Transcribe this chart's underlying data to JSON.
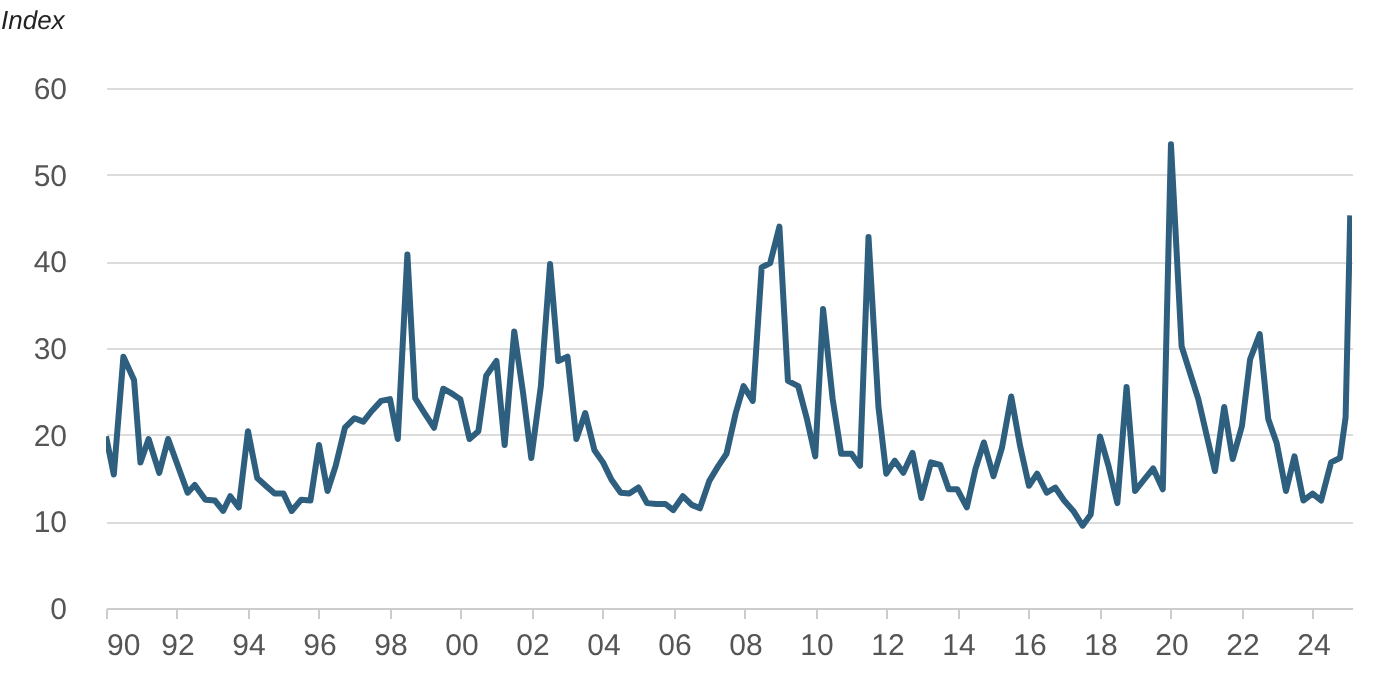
{
  "chart_data": {
    "type": "line",
    "ylabel": "Index",
    "x": [
      1990.0,
      1990.22,
      1990.49,
      1990.79,
      1990.97,
      1991.2,
      1991.5,
      1991.75,
      1992.3,
      1992.5,
      1992.8,
      1993.07,
      1993.3,
      1993.5,
      1993.74,
      1994.0,
      1994.26,
      1994.5,
      1994.75,
      1995.0,
      1995.23,
      1995.5,
      1995.76,
      1996.0,
      1996.24,
      1996.47,
      1996.73,
      1997.0,
      1997.25,
      1997.48,
      1997.75,
      1998.0,
      1998.22,
      1998.49,
      1998.71,
      1998.97,
      1999.24,
      1999.5,
      1999.76,
      1999.98,
      2000.24,
      2000.49,
      2000.71,
      2001.0,
      2001.23,
      2001.5,
      2001.75,
      2001.98,
      2002.25,
      2002.51,
      2002.74,
      2003.0,
      2003.25,
      2003.5,
      2003.76,
      2004.0,
      2004.24,
      2004.5,
      2004.74,
      2005.0,
      2005.24,
      2005.5,
      2005.76,
      2005.98,
      2006.25,
      2006.5,
      2006.73,
      2007.0,
      2007.25,
      2007.48,
      2007.74,
      2007.96,
      2008.22,
      2008.47,
      2008.71,
      2008.97,
      2009.21,
      2009.5,
      2009.74,
      2009.98,
      2010.2,
      2010.47,
      2010.71,
      2011.0,
      2011.24,
      2011.48,
      2011.76,
      2011.98,
      2012.22,
      2012.46,
      2012.72,
      2012.97,
      2013.24,
      2013.5,
      2013.74,
      2013.98,
      2014.25,
      2014.49,
      2014.73,
      2015.0,
      2015.24,
      2015.5,
      2015.75,
      2016.0,
      2016.23,
      2016.5,
      2016.74,
      2016.99,
      2017.25,
      2017.51,
      2017.74,
      2018.0,
      2018.24,
      2018.49,
      2018.75,
      2018.99,
      2019.24,
      2019.5,
      2019.77,
      2020.0,
      2020.3,
      2020.77,
      2021.24,
      2021.5,
      2021.74,
      2022.0,
      2022.23,
      2022.5,
      2022.74,
      2022.98,
      2023.24,
      2023.48,
      2023.73,
      2023.99,
      2024.23,
      2024.51,
      2024.76,
      2024.92,
      2025.05
    ],
    "series": [
      {
        "color": "#2e5f7f",
        "values": [
          19.8,
          15.4,
          29.0,
          26.3,
          16.8,
          19.5,
          15.6,
          19.5,
          13.3,
          14.2,
          12.5,
          12.4,
          11.2,
          12.9,
          11.6,
          20.4,
          15.0,
          14.1,
          13.2,
          13.2,
          11.2,
          12.5,
          12.4,
          18.8,
          13.5,
          16.4,
          20.8,
          21.9,
          21.5,
          22.7,
          23.9,
          24.1,
          19.5,
          40.8,
          24.2,
          22.5,
          20.8,
          25.3,
          24.7,
          24.1,
          19.5,
          20.4,
          26.8,
          28.5,
          18.8,
          31.9,
          24.8,
          17.3,
          25.6,
          39.7,
          28.5,
          29.0,
          19.5,
          22.5,
          18.2,
          16.8,
          14.8,
          13.3,
          13.2,
          13.9,
          12.1,
          12.0,
          12.0,
          11.3,
          12.9,
          11.9,
          11.5,
          14.7,
          16.4,
          17.8,
          22.5,
          25.6,
          23.9,
          39.3,
          39.8,
          44.0,
          26.2,
          25.6,
          21.9,
          17.5,
          34.5,
          24.1,
          17.8,
          17.8,
          16.4,
          42.8,
          23.2,
          15.5,
          17.0,
          15.6,
          17.9,
          12.7,
          16.8,
          16.5,
          13.7,
          13.7,
          11.6,
          16.0,
          19.1,
          15.2,
          18.5,
          24.4,
          18.7,
          14.1,
          15.5,
          13.3,
          13.9,
          12.4,
          11.2,
          9.5,
          10.8,
          19.8,
          16.4,
          12.1,
          25.5,
          13.5,
          14.8,
          16.1,
          13.7,
          53.5,
          30.2,
          24.1,
          15.8,
          23.2,
          17.2,
          21.0,
          28.7,
          31.6,
          21.8,
          19.0,
          13.5,
          17.5,
          12.4,
          13.2,
          12.4,
          16.8,
          17.3,
          22.0,
          45.3
        ]
      }
    ],
    "xlim": [
      1990,
      2025.1
    ],
    "xticks": [
      {
        "value": 1990,
        "label": "90"
      },
      {
        "value": 1992,
        "label": "92"
      },
      {
        "value": 1994,
        "label": "94"
      },
      {
        "value": 1996,
        "label": "96"
      },
      {
        "value": 1998,
        "label": "98"
      },
      {
        "value": 2000,
        "label": "00"
      },
      {
        "value": 2002,
        "label": "02"
      },
      {
        "value": 2004,
        "label": "04"
      },
      {
        "value": 2006,
        "label": "06"
      },
      {
        "value": 2008,
        "label": "08"
      },
      {
        "value": 2010,
        "label": "10"
      },
      {
        "value": 2012,
        "label": "12"
      },
      {
        "value": 2014,
        "label": "14"
      },
      {
        "value": 2016,
        "label": "16"
      },
      {
        "value": 2018,
        "label": "18"
      },
      {
        "value": 2020,
        "label": "20"
      },
      {
        "value": 2022,
        "label": "22"
      },
      {
        "value": 2024,
        "label": "24"
      }
    ],
    "ylim": [
      0,
      60
    ],
    "yticks": [
      0,
      10,
      20,
      30,
      40,
      50,
      60
    ],
    "grid": "y",
    "line_style": "solid"
  }
}
